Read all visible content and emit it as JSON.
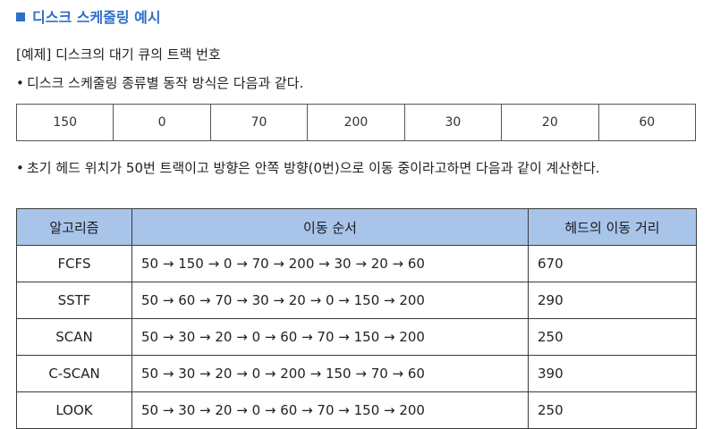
{
  "title": "디스크 스케줄링 예시",
  "example_line": "[예제] 디스크의 대기 큐의 트랙 번호",
  "bullet1": "디스크 스케줄링 종류별 동작 방식은 다음과 같다.",
  "queue": [
    "150",
    "0",
    "70",
    "200",
    "30",
    "20",
    "60"
  ],
  "bullet2": "초기 헤드 위치가 50번 트랙이고 방향은 안쪽 방향(0번)으로 이동 중이라고하면 다음과 같이 계산한다.",
  "table": {
    "headers": [
      "알고리즘",
      "이동 순서",
      "헤드의 이동 거리"
    ],
    "rows": [
      {
        "algo": "FCFS",
        "order": "50 → 150 →  0 → 70 → 200 → 30 → 20 → 60",
        "dist": "670"
      },
      {
        "algo": "SSTF",
        "order": "50 → 60 →  70 → 30 → 20 → 0 → 150 → 200",
        "dist": "290"
      },
      {
        "algo": "SCAN",
        "order": "50 → 30 → 20 → 0 → 60 → 70 → 150 → 200",
        "dist": "250"
      },
      {
        "algo": "C-SCAN",
        "order": "50 → 30 → 20 → 0 → 200 → 150 → 70 → 60",
        "dist": "390"
      },
      {
        "algo": "LOOK",
        "order": "50 → 30 → 20 → 0 → 60 → 70 → 150 → 200",
        "dist": "250"
      }
    ]
  },
  "colors": {
    "accent": "#2f6fc9",
    "header_bg": "#a8c4e9"
  }
}
